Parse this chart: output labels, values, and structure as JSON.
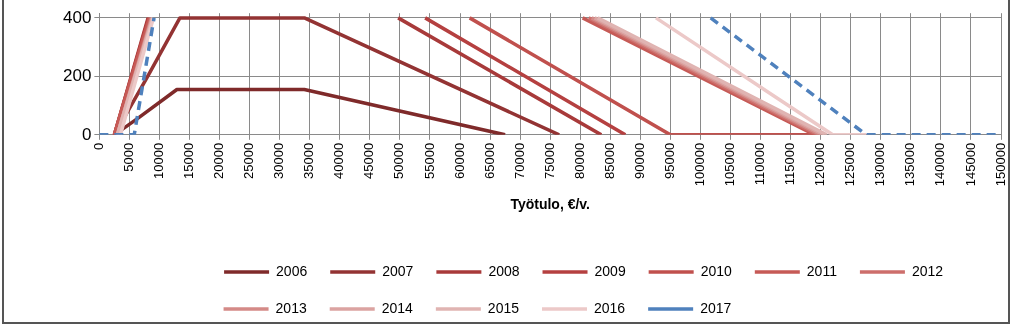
{
  "chart_data": {
    "type": "line",
    "xlabel": "Työtulo, €/v.",
    "xlim": [
      0,
      150000
    ],
    "xticks": [
      0,
      5000,
      10000,
      15000,
      20000,
      25000,
      30000,
      35000,
      40000,
      45000,
      50000,
      55000,
      60000,
      65000,
      70000,
      75000,
      80000,
      85000,
      90000,
      95000,
      100000,
      105000,
      110000,
      115000,
      120000,
      125000,
      130000,
      135000,
      140000,
      145000,
      150000
    ],
    "ylim": [
      0,
      416
    ],
    "yticks": [
      0,
      200,
      400
    ],
    "grid": true,
    "legend": "bottom",
    "marker": "none",
    "line_style": "solid",
    "series": [
      {
        "name": "2006",
        "color": "#7f2a2a",
        "x": [
          2500,
          6500,
          12900,
          34100,
          67500
        ],
        "values": [
          0,
          58,
          155,
          155,
          0
        ]
      },
      {
        "name": "2007",
        "color": "#933333",
        "x": [
          2500,
          7900,
          13400,
          34100,
          76500
        ],
        "values": [
          0,
          195,
          400,
          400,
          0
        ]
      },
      {
        "name": "2008",
        "color": "#a83a3a",
        "x": [
          2500,
          8100,
          30000,
          49700,
          83500
        ],
        "values": [
          0,
          400,
          null,
          400,
          0
        ]
      },
      {
        "name": "2009",
        "color": "#b54040",
        "x": [
          2500,
          8200,
          30000,
          54200,
          87500
        ],
        "values": [
          0,
          400,
          null,
          400,
          0
        ]
      },
      {
        "name": "2010",
        "color": "#c0504d",
        "x": [
          2500,
          8300,
          30000,
          61600,
          95000,
          119000
        ],
        "values": [
          0,
          400,
          null,
          400,
          0,
          0
        ]
      },
      {
        "name": "2011",
        "color": "#c65a56",
        "x": [
          2500,
          8400,
          40000,
          80400,
          119000
        ],
        "values": [
          0,
          400,
          null,
          400,
          0
        ]
      },
      {
        "name": "2012",
        "color": "#cd6e6b",
        "x": [
          3000,
          8600,
          40000,
          81400,
          119500
        ],
        "values": [
          0,
          400,
          null,
          400,
          0
        ]
      },
      {
        "name": "2013",
        "color": "#d48a87",
        "x": [
          3000,
          8700,
          40000,
          81900,
          120000
        ],
        "values": [
          0,
          400,
          null,
          400,
          0
        ]
      },
      {
        "name": "2014",
        "color": "#dba3a1",
        "x": [
          3000,
          8800,
          40000,
          82400,
          120500
        ],
        "values": [
          0,
          400,
          null,
          400,
          0
        ]
      },
      {
        "name": "2015",
        "color": "#e0b4b2",
        "x": [
          3000,
          8900,
          40000,
          82900,
          121000
        ],
        "values": [
          0,
          400,
          null,
          400,
          0
        ]
      },
      {
        "name": "2016",
        "color": "#ecc9c8",
        "x": [
          3500,
          9000,
          40000,
          92600,
          122000,
          127600
        ],
        "values": [
          0,
          400,
          null,
          400,
          0,
          0
        ]
      },
      {
        "name": "2017",
        "color": "#4f81bd",
        "line_style": "dashed",
        "x": [
          0,
          5800,
          9100,
          50000,
          101700,
          127600,
          150000
        ],
        "values": [
          0,
          0,
          400,
          null,
          400,
          0,
          0
        ]
      }
    ]
  }
}
